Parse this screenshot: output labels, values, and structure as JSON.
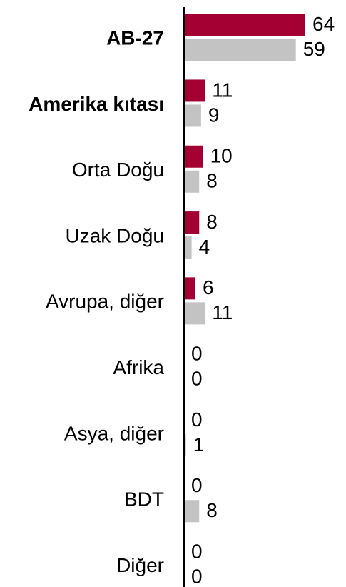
{
  "chart_data": {
    "type": "hbar",
    "categories": [
      "AB-27",
      "Amerika kıtası",
      "Orta Doğu",
      "Uzak Doğu",
      "Avrupa, diğer",
      "Afrika",
      "Asya, diğer",
      "BDT",
      "Diğer"
    ],
    "bold": [
      true,
      true,
      false,
      false,
      false,
      false,
      false,
      false,
      false
    ],
    "series": [
      {
        "color": "#a50034",
        "values": [
          64,
          11,
          10,
          8,
          6,
          0,
          0,
          0,
          0
        ]
      },
      {
        "color": "#c3c3c3",
        "values": [
          59,
          9,
          8,
          4,
          11,
          0,
          1,
          8,
          0
        ]
      }
    ]
  }
}
